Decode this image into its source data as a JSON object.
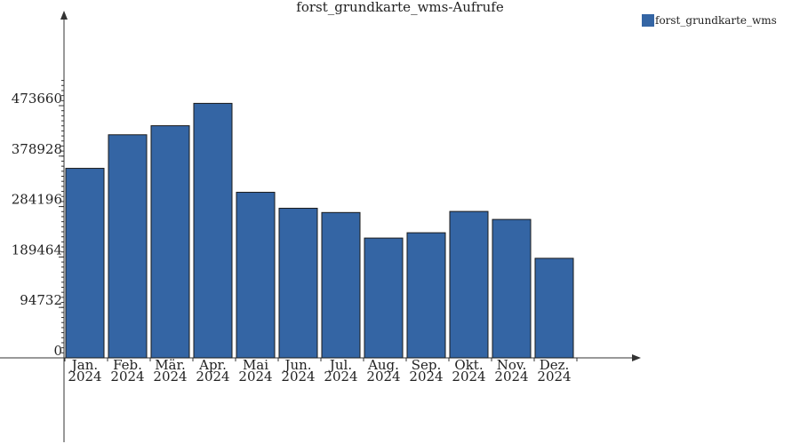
{
  "colors": {
    "bar": "#3465a4",
    "axis": "#333333"
  },
  "chart_data": {
    "type": "bar",
    "title": "forst_grundkarte_wms-Aufrufe",
    "categories": [
      [
        "Jan.",
        "2024"
      ],
      [
        "Feb.",
        "2024"
      ],
      [
        "Mär.",
        "2024"
      ],
      [
        "Apr.",
        "2024"
      ],
      [
        "Mai",
        "2024"
      ],
      [
        "Jun.",
        "2024"
      ],
      [
        "Jul.",
        "2024"
      ],
      [
        "Aug.",
        "2024"
      ],
      [
        "Sep.",
        "2024"
      ],
      [
        "Okt.",
        "2024"
      ],
      [
        "Nov.",
        "2024"
      ],
      [
        "Dez.",
        "2024"
      ]
    ],
    "series": [
      {
        "name": "forst_grundkarte_wms",
        "values": [
          356000,
          419000,
          436000,
          478000,
          311000,
          281000,
          273000,
          225000,
          235000,
          275000,
          260000,
          187000
        ]
      }
    ],
    "yticks": [
      0,
      94732,
      189464,
      284196,
      378928,
      473660
    ],
    "ylim": [
      0,
      473660
    ],
    "legend": "top-right"
  }
}
